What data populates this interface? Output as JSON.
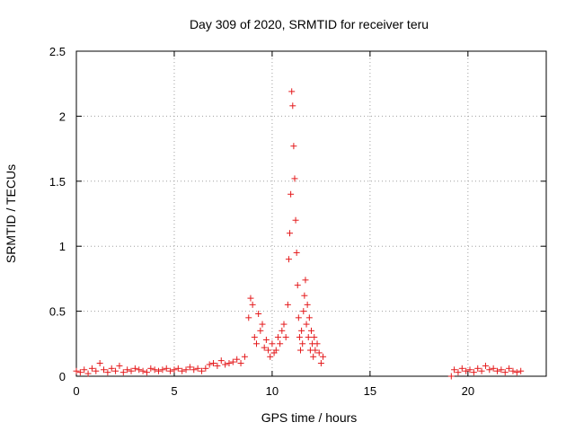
{
  "chart_data": {
    "type": "scatter",
    "title": "Day 309 of 2020, SRMTID for receiver teru",
    "xlabel": "GPS time / hours",
    "ylabel": "SRMTID / TECUs",
    "xlim": [
      0,
      24
    ],
    "ylim": [
      0,
      2.5
    ],
    "xticks": [
      0,
      5,
      10,
      15,
      20
    ],
    "xtick_labels": [
      "0",
      "5",
      "10",
      "15",
      "20"
    ],
    "yticks": [
      0,
      0.5,
      1,
      1.5,
      2,
      2.5
    ],
    "ytick_labels": [
      "0",
      "0.5",
      "1",
      "1.5",
      "2",
      "2.5"
    ],
    "grid": true,
    "marker": "+",
    "color": "#e41a1c",
    "series": [
      {
        "name": "SRMTID",
        "x": [
          0.0,
          0.2,
          0.4,
          0.6,
          0.8,
          1.0,
          1.2,
          1.4,
          1.6,
          1.8,
          2.0,
          2.2,
          2.4,
          2.6,
          2.8,
          3.0,
          3.2,
          3.4,
          3.6,
          3.8,
          4.0,
          4.2,
          4.4,
          4.6,
          4.8,
          5.0,
          5.2,
          5.4,
          5.6,
          5.8,
          6.0,
          6.2,
          6.4,
          6.6,
          6.8,
          7.0,
          7.2,
          7.4,
          7.6,
          7.8,
          8.0,
          8.2,
          8.4,
          8.6,
          8.8,
          8.9,
          9.0,
          9.1,
          9.2,
          9.3,
          9.4,
          9.5,
          9.6,
          9.7,
          9.8,
          9.9,
          10.0,
          10.1,
          10.2,
          10.3,
          10.4,
          10.5,
          10.6,
          10.7,
          10.8,
          10.85,
          10.9,
          10.95,
          11.0,
          11.05,
          11.1,
          11.15,
          11.2,
          11.25,
          11.3,
          11.35,
          11.4,
          11.45,
          11.5,
          11.55,
          11.6,
          11.65,
          11.7,
          11.75,
          11.8,
          11.85,
          11.9,
          11.95,
          12.0,
          12.05,
          12.1,
          12.15,
          12.2,
          12.3,
          12.4,
          12.5,
          12.6,
          19.15,
          19.3,
          19.5,
          19.7,
          19.9,
          20.1,
          20.3,
          20.5,
          20.7,
          20.9,
          21.1,
          21.3,
          21.5,
          21.7,
          21.9,
          22.1,
          22.3,
          22.5,
          22.7
        ],
        "y": [
          0.04,
          0.03,
          0.05,
          0.02,
          0.06,
          0.04,
          0.1,
          0.05,
          0.03,
          0.06,
          0.04,
          0.08,
          0.03,
          0.05,
          0.04,
          0.06,
          0.05,
          0.04,
          0.03,
          0.06,
          0.05,
          0.04,
          0.05,
          0.06,
          0.04,
          0.05,
          0.06,
          0.04,
          0.05,
          0.07,
          0.05,
          0.06,
          0.04,
          0.06,
          0.09,
          0.1,
          0.08,
          0.12,
          0.09,
          0.1,
          0.11,
          0.13,
          0.1,
          0.15,
          0.45,
          0.6,
          0.55,
          0.3,
          0.25,
          0.48,
          0.35,
          0.4,
          0.22,
          0.28,
          0.2,
          0.15,
          0.25,
          0.18,
          0.2,
          0.3,
          0.25,
          0.35,
          0.4,
          0.3,
          0.55,
          0.9,
          1.1,
          1.4,
          2.19,
          2.08,
          1.77,
          1.52,
          1.2,
          0.95,
          0.7,
          0.45,
          0.3,
          0.2,
          0.35,
          0.25,
          0.5,
          0.62,
          0.74,
          0.4,
          0.55,
          0.3,
          0.45,
          0.2,
          0.35,
          0.25,
          0.15,
          0.3,
          0.2,
          0.25,
          0.18,
          0.1,
          0.15,
          0.0,
          0.05,
          0.03,
          0.06,
          0.04,
          0.05,
          0.03,
          0.06,
          0.04,
          0.08,
          0.05,
          0.06,
          0.04,
          0.05,
          0.03,
          0.06,
          0.04,
          0.03,
          0.04
        ]
      }
    ]
  }
}
